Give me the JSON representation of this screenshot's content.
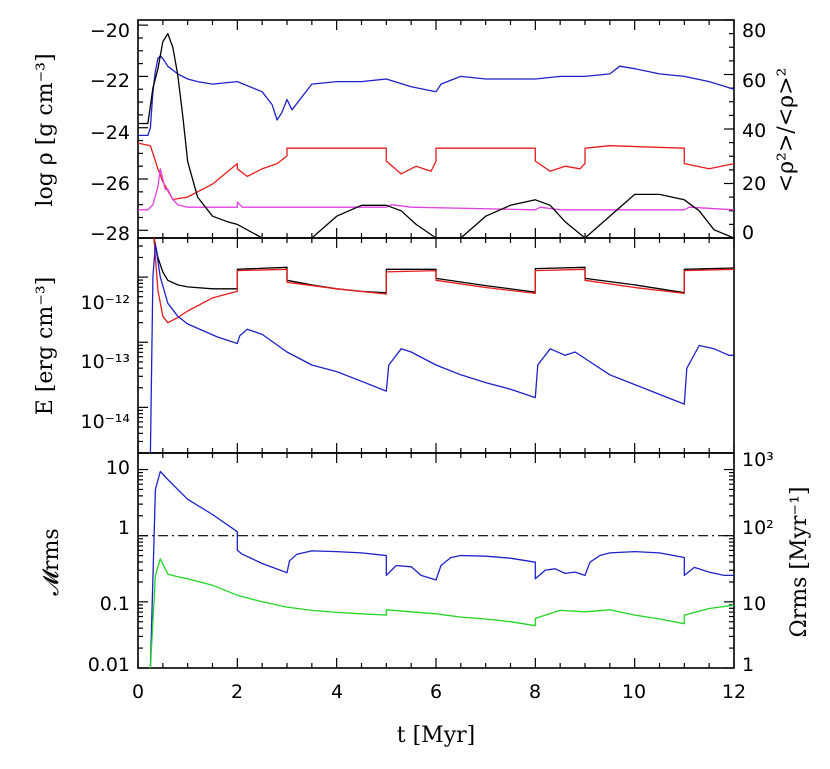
{
  "chart_data": [
    {
      "type": "line",
      "panel": "top",
      "x_range": [
        0,
        12
      ],
      "ylabel": "log ρ [g cm⁻³]",
      "ylim": [
        -28.3,
        -19.8
      ],
      "yticks": [
        "−20",
        "−22",
        "−24",
        "−26",
        "−28"
      ],
      "y2label": "<ρ²>/<ρ>²",
      "y2lim": [
        0,
        80
      ],
      "y2ticks": [
        "80",
        "60",
        "40",
        "20",
        "0"
      ],
      "series": [
        {
          "name": "blue",
          "color": "#1c22c8",
          "axis": "left",
          "x": [
            0,
            0.2,
            0.25,
            0.3,
            0.35,
            0.4,
            0.45,
            0.5,
            0.6,
            0.8,
            1.0,
            1.2,
            1.5,
            2.0,
            2.5,
            2.7,
            2.8,
            2.9,
            3.0,
            3.1,
            3.5,
            4.0,
            4.5,
            5.0,
            5.5,
            6.0,
            6.1,
            6.5,
            7.0,
            8.0,
            8.5,
            9.0,
            9.5,
            9.7,
            10.0,
            10.5,
            11.0,
            11.5,
            12.0
          ],
          "y": [
            -24.3,
            -24.3,
            -24.0,
            -22.6,
            -21.8,
            -21.3,
            -21.2,
            -21.3,
            -21.6,
            -21.9,
            -22.1,
            -22.2,
            -22.3,
            -22.2,
            -22.6,
            -23.1,
            -23.7,
            -23.4,
            -22.9,
            -23.3,
            -22.3,
            -22.2,
            -22.2,
            -22.1,
            -22.4,
            -22.6,
            -22.3,
            -22.0,
            -22.1,
            -22.1,
            -22.0,
            -22.0,
            -21.9,
            -21.6,
            -21.7,
            -21.9,
            -22.0,
            -22.2,
            -22.5
          ]
        },
        {
          "name": "red",
          "color": "#e81c1c",
          "axis": "left",
          "x": [
            0,
            0.25,
            0.3,
            0.4,
            0.5,
            0.7,
            1.0,
            1.5,
            2.0,
            2.0,
            2.2,
            2.5,
            2.8,
            3.0,
            3.0,
            3.5,
            5.0,
            5.0,
            5.3,
            5.6,
            5.9,
            6.0,
            6.0,
            6.5,
            8.0,
            8.0,
            8.3,
            8.6,
            8.9,
            9.0,
            9.0,
            9.5,
            11.0,
            11.0,
            11.5,
            12.0
          ],
          "y": [
            -24.6,
            -24.7,
            -25.0,
            -25.6,
            -26.1,
            -26.8,
            -26.7,
            -26.2,
            -25.4,
            -25.6,
            -25.9,
            -25.6,
            -25.4,
            -25.1,
            -24.8,
            -24.8,
            -24.8,
            -25.3,
            -25.8,
            -25.5,
            -25.7,
            -25.3,
            -24.8,
            -24.8,
            -24.8,
            -25.3,
            -25.7,
            -25.5,
            -25.6,
            -25.4,
            -24.8,
            -24.7,
            -24.8,
            -25.4,
            -25.6,
            -25.4
          ]
        },
        {
          "name": "magenta",
          "color": "#e040e0",
          "axis": "left",
          "x": [
            0,
            0.2,
            0.3,
            0.4,
            0.45,
            0.5,
            0.55,
            0.6,
            0.7,
            0.8,
            1.0,
            1.5,
            2.0,
            2.0,
            2.1,
            2.5,
            5.0,
            5.1,
            5.5,
            8.0,
            8.1,
            8.5,
            11.0,
            11.1,
            12.0
          ],
          "y": [
            -27.2,
            -27.2,
            -27.0,
            -26.3,
            -25.6,
            -26.0,
            -26.4,
            -26.4,
            -26.8,
            -27.0,
            -27.1,
            -27.1,
            -27.1,
            -26.9,
            -27.1,
            -27.1,
            -27.1,
            -27.0,
            -27.1,
            -27.2,
            -27.1,
            -27.2,
            -27.2,
            -27.1,
            -27.2
          ]
        },
        {
          "name": "black",
          "color": "#000000",
          "axis": "right",
          "x": [
            0,
            0.2,
            0.3,
            0.4,
            0.5,
            0.6,
            0.7,
            0.8,
            0.9,
            1.0,
            1.2,
            1.5,
            1.8,
            2.0,
            2.5,
            3.0,
            3.5,
            4.0,
            4.5,
            5.0,
            5.3,
            5.6,
            6.0,
            6.5,
            7.0,
            7.5,
            8.0,
            8.3,
            8.6,
            9.0,
            9.5,
            10.0,
            10.5,
            11.0,
            11.3,
            11.6,
            12.0
          ],
          "y": [
            42,
            42,
            55,
            62,
            72,
            75,
            70,
            60,
            45,
            28,
            15,
            8,
            6,
            5,
            0,
            0,
            0,
            8,
            12,
            12,
            10,
            5,
            0,
            0,
            8,
            12,
            14,
            12,
            6,
            0,
            8,
            16,
            16,
            14,
            10,
            3,
            0
          ]
        }
      ]
    },
    {
      "type": "line",
      "panel": "middle",
      "x_range": [
        0,
        12
      ],
      "ylabel": "E [erg cm⁻³]",
      "yscale": "log",
      "ylim_log10": [
        -14.7,
        -11.4
      ],
      "yticks": [
        "10⁻¹²",
        "10⁻¹³",
        "10⁻¹⁴"
      ],
      "series": [
        {
          "name": "black",
          "color": "#000000",
          "x": [
            0.32,
            0.35,
            0.4,
            0.5,
            0.6,
            0.8,
            1.0,
            1.5,
            2.0,
            2.0,
            3.0,
            3.0,
            3.5,
            4.0,
            4.5,
            5.0,
            5.0,
            6.0,
            6.0,
            7.0,
            8.0,
            8.0,
            9.0,
            9.0,
            10.0,
            11.0,
            11.0,
            12.0
          ],
          "y": [
            -11.4,
            -11.5,
            -11.7,
            -11.92,
            -12.05,
            -12.12,
            -12.15,
            -12.18,
            -12.18,
            -11.88,
            -11.85,
            -12.05,
            -12.12,
            -12.18,
            -12.22,
            -12.24,
            -11.88,
            -11.88,
            -12.02,
            -12.13,
            -12.23,
            -11.87,
            -11.85,
            -12.02,
            -12.12,
            -12.24,
            -11.88,
            -11.86
          ]
        },
        {
          "name": "red",
          "color": "#e81c1c",
          "x": [
            0.32,
            0.35,
            0.4,
            0.5,
            0.6,
            0.8,
            1.0,
            1.5,
            2.0,
            2.0,
            3.0,
            3.0,
            4.0,
            5.0,
            5.0,
            6.0,
            6.0,
            7.0,
            8.0,
            8.0,
            9.0,
            9.0,
            10.0,
            11.0,
            11.0,
            12.0
          ],
          "y": [
            -11.4,
            -11.7,
            -12.2,
            -12.6,
            -12.7,
            -12.62,
            -12.52,
            -12.32,
            -12.22,
            -11.9,
            -11.88,
            -12.08,
            -12.18,
            -12.26,
            -11.92,
            -11.9,
            -12.05,
            -12.16,
            -12.25,
            -11.9,
            -11.88,
            -12.05,
            -12.16,
            -12.25,
            -11.9,
            -11.88
          ]
        },
        {
          "name": "blue",
          "color": "#1c22c8",
          "x": [
            0.25,
            0.3,
            0.35,
            0.45,
            0.6,
            0.8,
            1.0,
            1.3,
            1.6,
            2.0,
            2.05,
            2.2,
            2.5,
            3.0,
            3.5,
            4.0,
            4.5,
            5.0,
            5.05,
            5.3,
            5.5,
            6.0,
            6.5,
            7.0,
            7.5,
            8.0,
            8.05,
            8.3,
            8.6,
            8.8,
            9.0,
            9.5,
            10.0,
            10.5,
            11.0,
            11.05,
            11.3,
            11.6,
            11.9,
            12.0
          ],
          "y": [
            -14.7,
            -12.0,
            -11.5,
            -12.0,
            -12.4,
            -12.6,
            -12.72,
            -12.82,
            -12.92,
            -13.02,
            -12.9,
            -12.8,
            -12.88,
            -13.15,
            -13.35,
            -13.45,
            -13.6,
            -13.75,
            -13.35,
            -13.1,
            -13.15,
            -13.35,
            -13.5,
            -13.62,
            -13.72,
            -13.85,
            -13.35,
            -13.1,
            -13.2,
            -13.15,
            -13.25,
            -13.5,
            -13.65,
            -13.8,
            -13.95,
            -13.4,
            -13.05,
            -13.1,
            -13.2,
            -13.2
          ]
        }
      ]
    },
    {
      "type": "line",
      "panel": "bottom",
      "x_range": [
        0,
        12
      ],
      "xlabel": "t [Myr]",
      "xticks": [
        "0",
        "2",
        "4",
        "6",
        "8",
        "10",
        "12"
      ],
      "ylabel": "𝓜rms",
      "yscale": "log",
      "ylim_log10": [
        -2,
        1.25
      ],
      "yticks": [
        "10",
        "1",
        "0.1",
        "0.01"
      ],
      "y2label": "Ωrms [Myr⁻¹]",
      "y2scale": "log",
      "y2lim_log10": [
        0,
        3.25
      ],
      "y2ticks": [
        "10³",
        "10²",
        "10",
        "1"
      ],
      "reference_line": {
        "y": 1,
        "style": "dash-dot"
      },
      "series": [
        {
          "name": "blue",
          "color": "#1c22c8",
          "axis": "left",
          "x": [
            0.25,
            0.35,
            0.45,
            0.6,
            0.8,
            1.0,
            1.5,
            2.0,
            2.0,
            2.1,
            2.5,
            3.0,
            3.05,
            3.2,
            3.5,
            4.0,
            4.5,
            5.0,
            5.0,
            5.2,
            5.5,
            5.7,
            6.0,
            6.1,
            6.3,
            6.5,
            7.0,
            7.5,
            8.0,
            8.0,
            8.2,
            8.4,
            8.6,
            8.8,
            9.0,
            9.1,
            9.3,
            9.5,
            10.0,
            10.5,
            11.0,
            11.0,
            11.2,
            11.5,
            11.8,
            12.0
          ],
          "y": [
            -2,
            0.7,
            0.97,
            0.85,
            0.7,
            0.55,
            0.32,
            0.06,
            -0.22,
            -0.28,
            -0.42,
            -0.56,
            -0.38,
            -0.28,
            -0.23,
            -0.24,
            -0.26,
            -0.3,
            -0.6,
            -0.45,
            -0.47,
            -0.6,
            -0.67,
            -0.45,
            -0.33,
            -0.3,
            -0.31,
            -0.34,
            -0.4,
            -0.65,
            -0.52,
            -0.5,
            -0.57,
            -0.55,
            -0.6,
            -0.4,
            -0.3,
            -0.26,
            -0.24,
            -0.26,
            -0.33,
            -0.6,
            -0.48,
            -0.55,
            -0.6,
            -0.6
          ]
        },
        {
          "name": "green",
          "color": "#22d622",
          "axis": "left",
          "x": [
            0.25,
            0.35,
            0.45,
            0.6,
            0.8,
            1.0,
            1.5,
            2.0,
            2.5,
            3.0,
            3.5,
            4.0,
            4.5,
            5.0,
            5.0,
            5.5,
            6.0,
            6.5,
            7.0,
            7.5,
            8.0,
            8.0,
            8.5,
            9.0,
            9.5,
            10.0,
            10.5,
            11.0,
            11.0,
            11.5,
            12.0
          ],
          "y": [
            -2,
            -0.6,
            -0.35,
            -0.58,
            -0.62,
            -0.65,
            -0.75,
            -0.9,
            -1.0,
            -1.08,
            -1.13,
            -1.16,
            -1.18,
            -1.2,
            -1.12,
            -1.15,
            -1.18,
            -1.23,
            -1.26,
            -1.3,
            -1.36,
            -1.25,
            -1.13,
            -1.15,
            -1.12,
            -1.2,
            -1.26,
            -1.33,
            -1.2,
            -1.1,
            -1.05
          ]
        }
      ]
    }
  ]
}
